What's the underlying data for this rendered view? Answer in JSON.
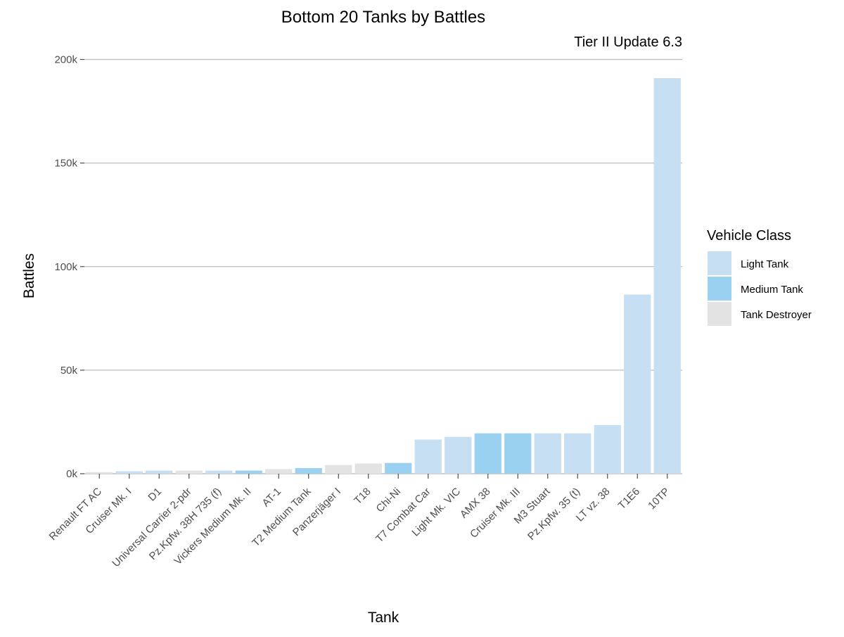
{
  "chart_data": {
    "type": "bar",
    "title": "Bottom 20 Tanks by Battles",
    "subtitle": "Tier II Update 6.3",
    "xlabel": "Tank",
    "ylabel": "Battles",
    "ylim": [
      0,
      200000
    ],
    "yticks": [
      {
        "value": 0,
        "label": "0k"
      },
      {
        "value": 50000,
        "label": "50k"
      },
      {
        "value": 100000,
        "label": "100k"
      },
      {
        "value": 150000,
        "label": "150k"
      },
      {
        "value": 200000,
        "label": "200k"
      }
    ],
    "grid": "horizontal major gridlines",
    "legend": {
      "title": "Vehicle Class",
      "position": "right",
      "entries": [
        {
          "name": "Light Tank",
          "color": "#c6dff3"
        },
        {
          "name": "Medium Tank",
          "color": "#9ad1f0"
        },
        {
          "name": "Tank Destroyer",
          "color": "#e3e3e3"
        }
      ]
    },
    "categories": [
      "Renault FT AC",
      "Cruiser Mk. I",
      "D1",
      "Universal Carrier 2-pdr",
      "Pz.Kpfw. 38H 735 (f)",
      "Vickers Medium Mk. II",
      "AT-1",
      "T2 Medium Tank",
      "Panzerjäger I",
      "T18",
      "Chi-Ni",
      "T7 Combat Car",
      "Light Mk. VIC",
      "AMX 38",
      "Cruiser Mk. III",
      "M3 Stuart",
      "Pz.Kpfw. 35 (t)",
      "LT vz. 38",
      "T1E6",
      "10TP"
    ],
    "vehicle_class": [
      "Tank Destroyer",
      "Light Tank",
      "Light Tank",
      "Tank Destroyer",
      "Light Tank",
      "Medium Tank",
      "Tank Destroyer",
      "Medium Tank",
      "Tank Destroyer",
      "Tank Destroyer",
      "Medium Tank",
      "Light Tank",
      "Light Tank",
      "Medium Tank",
      "Medium Tank",
      "Light Tank",
      "Light Tank",
      "Light Tank",
      "Light Tank",
      "Light Tank"
    ],
    "values": [
      800,
      1200,
      1500,
      1500,
      1500,
      1500,
      2200,
      2700,
      4200,
      4900,
      5200,
      16500,
      17800,
      19500,
      19500,
      19500,
      19500,
      23500,
      86500,
      191000
    ]
  }
}
